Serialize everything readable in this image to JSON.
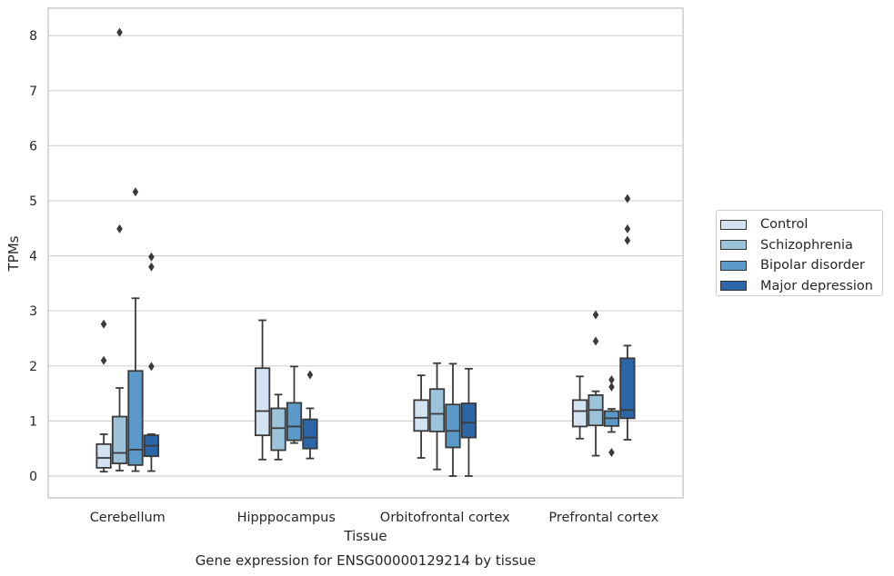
{
  "chart_data": {
    "type": "boxplot",
    "caption": "Gene expression for ENSG00000129214 by tissue",
    "xlabel": "Tissue",
    "ylabel": "TPMs",
    "ylim": [
      -0.4,
      8.5
    ],
    "yticks": [
      0,
      1,
      2,
      3,
      4,
      5,
      6,
      7,
      8
    ],
    "grid": "horizontal",
    "legend_position": "right",
    "categories": [
      "Cerebellum",
      "Hipppocampus",
      "Orbitofrontal cortex",
      "Prefrontal cortex"
    ],
    "series": [
      {
        "name": "Control",
        "color": "#d4e3f2",
        "boxes": [
          {
            "whislo": 0.08,
            "q1": 0.15,
            "med": 0.33,
            "q3": 0.58,
            "whishi": 0.76,
            "fliers": [
              2.1,
              2.76
            ]
          },
          {
            "whislo": 0.3,
            "q1": 0.74,
            "med": 1.18,
            "q3": 1.96,
            "whishi": 2.83,
            "fliers": []
          },
          {
            "whislo": 0.33,
            "q1": 0.82,
            "med": 1.06,
            "q3": 1.38,
            "whishi": 1.83,
            "fliers": []
          },
          {
            "whislo": 0.68,
            "q1": 0.9,
            "med": 1.18,
            "q3": 1.38,
            "whishi": 1.81,
            "fliers": []
          }
        ]
      },
      {
        "name": "Schizophrenia",
        "color": "#9cc3da",
        "boxes": [
          {
            "whislo": 0.1,
            "q1": 0.23,
            "med": 0.42,
            "q3": 1.08,
            "whishi": 1.6,
            "fliers": [
              4.49,
              8.06
            ]
          },
          {
            "whislo": 0.3,
            "q1": 0.47,
            "med": 0.87,
            "q3": 1.23,
            "whishi": 1.48,
            "fliers": []
          },
          {
            "whislo": 0.12,
            "q1": 0.81,
            "med": 1.13,
            "q3": 1.58,
            "whishi": 2.05,
            "fliers": []
          },
          {
            "whislo": 0.37,
            "q1": 0.92,
            "med": 1.2,
            "q3": 1.47,
            "whishi": 1.54,
            "fliers": [
              2.45,
              2.93
            ]
          }
        ]
      },
      {
        "name": "Bipolar disorder",
        "color": "#5b9ac8",
        "boxes": [
          {
            "whislo": 0.09,
            "q1": 0.2,
            "med": 0.48,
            "q3": 1.91,
            "whishi": 3.23,
            "fliers": [
              5.16
            ]
          },
          {
            "whislo": 0.6,
            "q1": 0.65,
            "med": 0.9,
            "q3": 1.33,
            "whishi": 1.99,
            "fliers": []
          },
          {
            "whislo": 0.0,
            "q1": 0.52,
            "med": 0.82,
            "q3": 1.3,
            "whishi": 2.04,
            "fliers": []
          },
          {
            "whislo": 0.8,
            "q1": 0.91,
            "med": 1.05,
            "q3": 1.18,
            "whishi": 1.22,
            "fliers": [
              0.43,
              1.62,
              1.75
            ]
          }
        ]
      },
      {
        "name": "Major depression",
        "color": "#2a66a8",
        "boxes": [
          {
            "whislo": 0.09,
            "q1": 0.36,
            "med": 0.55,
            "q3": 0.74,
            "whishi": 0.76,
            "fliers": [
              1.99,
              3.8,
              3.98
            ]
          },
          {
            "whislo": 0.32,
            "q1": 0.5,
            "med": 0.7,
            "q3": 1.03,
            "whishi": 1.23,
            "fliers": [
              1.84
            ]
          },
          {
            "whislo": 0.0,
            "q1": 0.7,
            "med": 0.97,
            "q3": 1.32,
            "whishi": 1.95,
            "fliers": []
          },
          {
            "whislo": 0.66,
            "q1": 1.05,
            "med": 1.2,
            "q3": 2.14,
            "whishi": 2.37,
            "fliers": [
              4.28,
              4.49,
              5.04
            ]
          }
        ]
      }
    ]
  }
}
